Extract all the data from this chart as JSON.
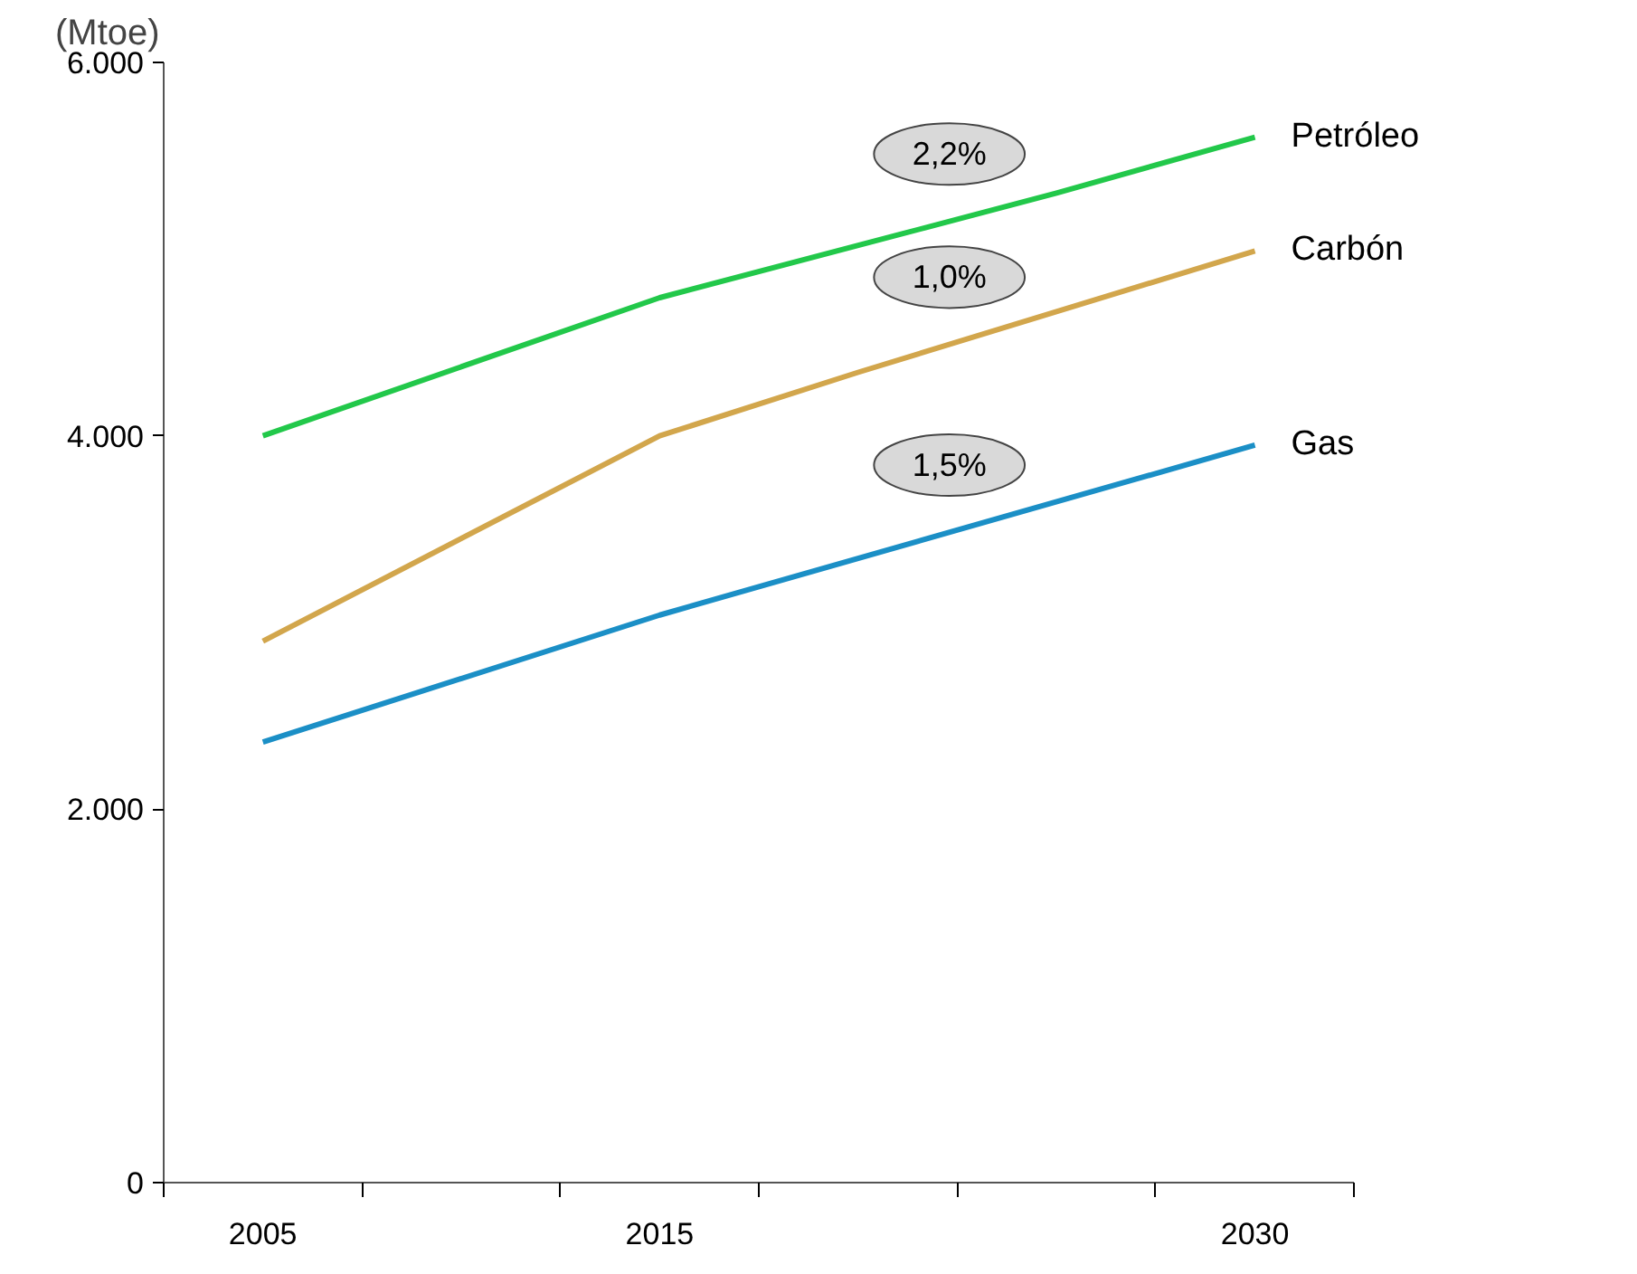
{
  "chart_data": {
    "type": "line",
    "ylabel": "(Mtoe)",
    "legend": false,
    "grid": false,
    "marker": "none",
    "line_style": "solid",
    "xlim": [
      2002.5,
      2032.5
    ],
    "xticks": [
      {
        "value": 2002.5,
        "label": null
      },
      {
        "value": 2005,
        "label": "2005"
      },
      {
        "value": 2007.5,
        "label": null
      },
      {
        "value": 2012.5,
        "label": null
      },
      {
        "value": 2015,
        "label": "2015"
      },
      {
        "value": 2017.5,
        "label": null
      },
      {
        "value": 2022.5,
        "label": null
      },
      {
        "value": 2027.5,
        "label": null
      },
      {
        "value": 2030,
        "label": "2030"
      },
      {
        "value": 2032.5,
        "label": null
      }
    ],
    "ylim": [
      0,
      6000
    ],
    "yticks": [
      {
        "value": 0,
        "label": "0"
      },
      {
        "value": 2000,
        "label": "2.000"
      },
      {
        "value": 4000,
        "label": "4.000"
      },
      {
        "value": 6000,
        "label": "6.000"
      }
    ],
    "series": [
      {
        "name": "Petróleo",
        "color": "#22c84a",
        "x": [
          2005,
          2015,
          2025,
          2030
        ],
        "values": [
          4000,
          4740,
          5300,
          5600
        ]
      },
      {
        "name": "Carbón",
        "color": "#d2a64c",
        "x": [
          2005,
          2015,
          2020,
          2030
        ],
        "values": [
          2900,
          4000,
          4340,
          4990
        ]
      },
      {
        "name": "Gas",
        "color": "#1b8fc6",
        "x": [
          2005,
          2015,
          2030
        ],
        "values": [
          2360,
          3040,
          3950
        ]
      }
    ],
    "annotations": [
      "2,2%",
      "1,0%",
      "1,5%"
    ]
  }
}
